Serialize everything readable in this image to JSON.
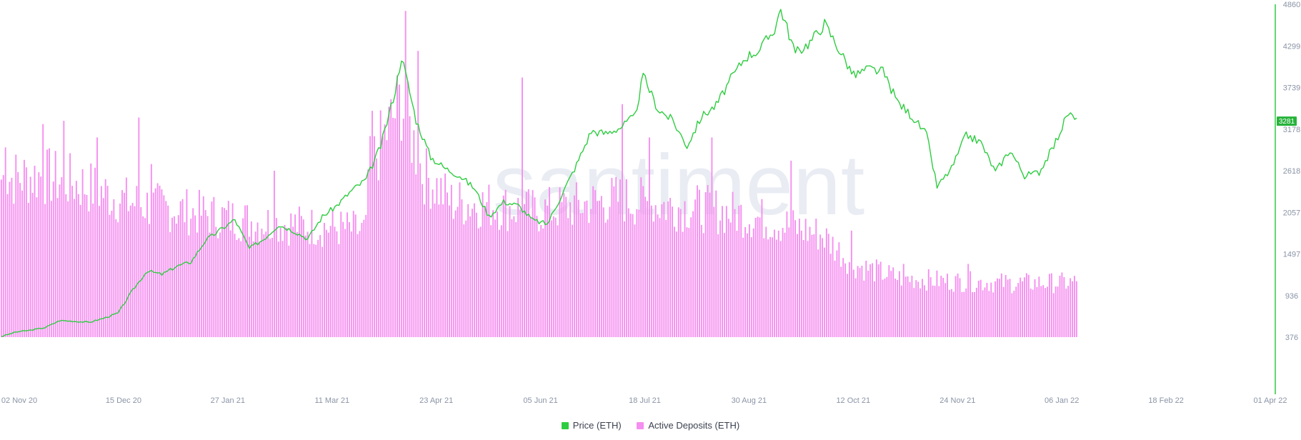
{
  "chart_data": {
    "type": "bar",
    "watermark": "santiment",
    "x_ticks": [
      "02 Nov 20",
      "15 Dec 20",
      "27 Jan 21",
      "11 Mar 21",
      "23 Apr 21",
      "05 Jun 21",
      "18 Jul 21",
      "30 Aug 21",
      "12 Oct 21",
      "24 Nov 21",
      "06 Jan 22",
      "18 Feb 22",
      "01 Apr 22"
    ],
    "x_range": [
      "2020-11-01",
      "2022-04-01"
    ],
    "y_right": {
      "ticks": [
        376,
        936,
        1497,
        2057,
        2618,
        3178,
        3739,
        4299,
        4860
      ],
      "range": [
        376,
        4860
      ]
    },
    "current_price_label": "3281",
    "colors": {
      "price": "#2ecc40",
      "deposits": "#f58ff0",
      "price_badge": "#26b33a"
    },
    "series": [
      {
        "name": "Price (ETH)",
        "type": "line",
        "points": [
          [
            "2020-11-01",
            385
          ],
          [
            "2020-11-08",
            445
          ],
          [
            "2020-11-15",
            470
          ],
          [
            "2020-11-22",
            505
          ],
          [
            "2020-11-29",
            600
          ],
          [
            "2020-12-06",
            590
          ],
          [
            "2020-12-13",
            575
          ],
          [
            "2020-12-20",
            630
          ],
          [
            "2020-12-27",
            700
          ],
          [
            "2021-01-03",
            1010
          ],
          [
            "2021-01-10",
            1270
          ],
          [
            "2021-01-17",
            1220
          ],
          [
            "2021-01-24",
            1330
          ],
          [
            "2021-01-31",
            1390
          ],
          [
            "2021-02-07",
            1680
          ],
          [
            "2021-02-14",
            1820
          ],
          [
            "2021-02-21",
            1960
          ],
          [
            "2021-02-28",
            1570
          ],
          [
            "2021-03-07",
            1700
          ],
          [
            "2021-03-14",
            1890
          ],
          [
            "2021-03-21",
            1810
          ],
          [
            "2021-03-28",
            1700
          ],
          [
            "2021-04-04",
            2000
          ],
          [
            "2021-04-11",
            2150
          ],
          [
            "2021-04-18",
            2350
          ],
          [
            "2021-04-25",
            2500
          ],
          [
            "2021-05-02",
            2950
          ],
          [
            "2021-05-09",
            3700
          ],
          [
            "2021-05-12",
            4160
          ],
          [
            "2021-05-19",
            3300
          ],
          [
            "2021-05-26",
            2800
          ],
          [
            "2021-06-02",
            2650
          ],
          [
            "2021-06-09",
            2550
          ],
          [
            "2021-06-16",
            2380
          ],
          [
            "2021-06-23",
            2000
          ],
          [
            "2021-06-30",
            2200
          ],
          [
            "2021-07-07",
            2150
          ],
          [
            "2021-07-14",
            1950
          ],
          [
            "2021-07-21",
            1900
          ],
          [
            "2021-07-28",
            2300
          ],
          [
            "2021-08-04",
            2700
          ],
          [
            "2021-08-11",
            3150
          ],
          [
            "2021-08-18",
            3120
          ],
          [
            "2021-08-25",
            3200
          ],
          [
            "2021-09-01",
            3350
          ],
          [
            "2021-09-05",
            3900
          ],
          [
            "2021-09-12",
            3450
          ],
          [
            "2021-09-19",
            3300
          ],
          [
            "2021-09-26",
            2950
          ],
          [
            "2021-10-03",
            3350
          ],
          [
            "2021-10-10",
            3500
          ],
          [
            "2021-10-17",
            3850
          ],
          [
            "2021-10-24",
            4150
          ],
          [
            "2021-10-31",
            4250
          ],
          [
            "2021-11-07",
            4530
          ],
          [
            "2021-11-10",
            4800
          ],
          [
            "2021-11-17",
            4200
          ],
          [
            "2021-11-24",
            4350
          ],
          [
            "2021-12-01",
            4600
          ],
          [
            "2021-12-08",
            4250
          ],
          [
            "2021-12-15",
            3900
          ],
          [
            "2021-12-22",
            3990
          ],
          [
            "2021-12-29",
            3950
          ],
          [
            "2022-01-05",
            3550
          ],
          [
            "2022-01-12",
            3350
          ],
          [
            "2022-01-19",
            3100
          ],
          [
            "2022-01-24",
            2400
          ],
          [
            "2022-01-31",
            2650
          ],
          [
            "2022-02-07",
            3100
          ],
          [
            "2022-02-14",
            3000
          ],
          [
            "2022-02-21",
            2600
          ],
          [
            "2022-02-28",
            2900
          ],
          [
            "2022-03-07",
            2550
          ],
          [
            "2022-03-14",
            2600
          ],
          [
            "2022-03-21",
            2950
          ],
          [
            "2022-03-28",
            3400
          ],
          [
            "2022-04-01",
            3281
          ]
        ]
      },
      {
        "name": "Active Deposits (ETH)",
        "type": "bar",
        "points": [
          [
            "2020-11-01",
            240
          ],
          [
            "2020-11-21",
            245
          ],
          [
            "2020-12-11",
            230
          ],
          [
            "2021-01-01",
            205
          ],
          [
            "2021-01-21",
            195
          ],
          [
            "2021-02-10",
            185
          ],
          [
            "2021-03-03",
            175
          ],
          [
            "2021-03-24",
            170
          ],
          [
            "2021-04-13",
            165
          ],
          [
            "2021-04-25",
            160
          ],
          [
            "2021-04-26",
            250
          ],
          [
            "2021-05-12",
            360
          ],
          [
            "2021-05-22",
            250
          ],
          [
            "2021-06-05",
            205
          ],
          [
            "2021-06-25",
            200
          ],
          [
            "2021-07-15",
            190
          ],
          [
            "2021-08-05",
            200
          ],
          [
            "2021-08-25",
            210
          ],
          [
            "2021-09-14",
            200
          ],
          [
            "2021-10-04",
            195
          ],
          [
            "2021-10-24",
            185
          ],
          [
            "2021-11-13",
            170
          ],
          [
            "2021-11-30",
            155
          ],
          [
            "2021-12-15",
            110
          ],
          [
            "2022-01-06",
            90
          ],
          [
            "2022-01-30",
            85
          ],
          [
            "2022-02-28",
            82
          ],
          [
            "2022-04-01",
            83
          ]
        ],
        "spikes": [
          [
            "2020-11-03",
            285
          ],
          [
            "2020-11-21",
            320
          ],
          [
            "2020-12-01",
            325
          ],
          [
            "2020-12-17",
            300
          ],
          [
            "2021-01-06",
            330
          ],
          [
            "2021-01-12",
            260
          ],
          [
            "2021-03-12",
            250
          ],
          [
            "2021-04-28",
            340
          ],
          [
            "2021-05-14",
            490
          ],
          [
            "2021-05-20",
            430
          ],
          [
            "2021-07-09",
            390
          ],
          [
            "2021-08-26",
            350
          ],
          [
            "2021-09-08",
            300
          ],
          [
            "2021-10-08",
            300
          ],
          [
            "2021-11-15",
            265
          ],
          [
            "2021-12-14",
            160
          ],
          [
            "2022-01-08",
            110
          ],
          [
            "2022-02-08",
            110
          ]
        ],
        "y_range": [
          0,
          500
        ]
      }
    ],
    "legend": [
      {
        "name": "Price (ETH)",
        "color": "#2ecc40"
      },
      {
        "name": "Active Deposits (ETH)",
        "color": "#f58ff0"
      }
    ]
  }
}
